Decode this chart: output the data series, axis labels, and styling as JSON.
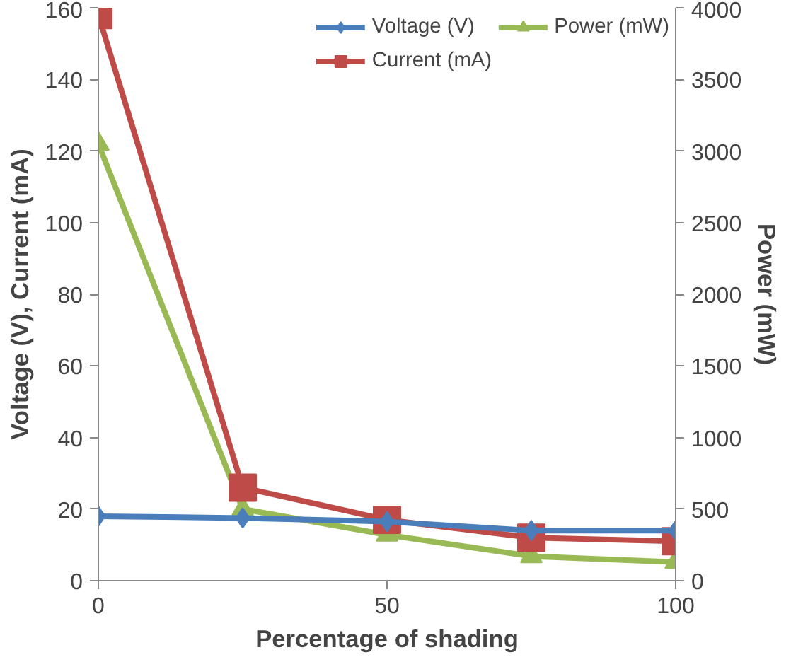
{
  "chart_data": {
    "type": "line",
    "xlabel": "Percentage of shading",
    "ylabel": "Voltage (V), Current (mA)",
    "y2label": "Power (mW)",
    "x": [
      0,
      25,
      50,
      75,
      100
    ],
    "xlim": [
      0,
      100
    ],
    "xticks": [
      0,
      50,
      100
    ],
    "ylim": [
      0,
      160
    ],
    "yticks": [
      0,
      20,
      40,
      60,
      80,
      100,
      120,
      140,
      160
    ],
    "y2lim": [
      0,
      4000
    ],
    "y2ticks": [
      0,
      500,
      1000,
      1500,
      2000,
      2500,
      3000,
      3500,
      4000
    ],
    "grid": false,
    "legend": "top",
    "series": [
      {
        "name": "Voltage (V)",
        "color": "#4a7ebb",
        "marker": "diamond",
        "values": [
          18,
          17.5,
          16.5,
          14,
          14
        ]
      },
      {
        "name": "Current (mA)",
        "color": "#be4b48",
        "marker": "square",
        "values": [
          158,
          26,
          17,
          12,
          11
        ]
      },
      {
        "name": "Power (mW)",
        "color": "#98b954",
        "marker": "triangle",
        "axis": "y2",
        "values": [
          3050,
          500,
          320,
          170,
          130
        ]
      }
    ]
  }
}
